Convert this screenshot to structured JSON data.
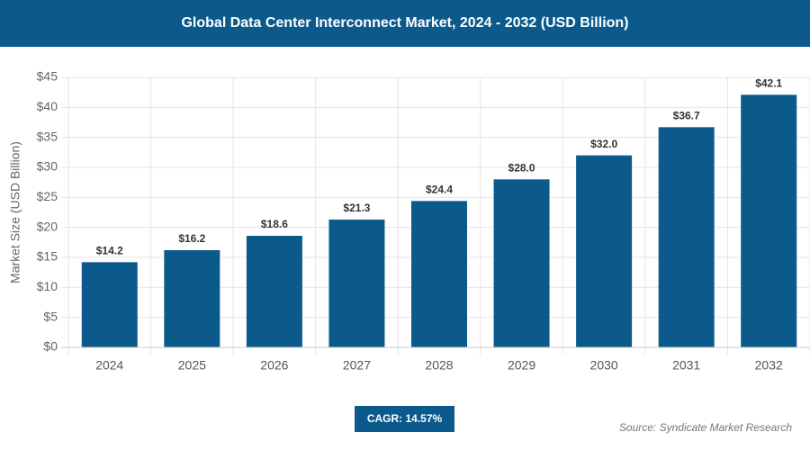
{
  "chart_data": {
    "type": "bar",
    "title": "Global Data Center Interconnect Market, 2024 - 2032 (USD Billion)",
    "y_label": "Market Size (USD Billion)",
    "categories": [
      "2024",
      "2025",
      "2026",
      "2027",
      "2028",
      "2029",
      "2030",
      "2031",
      "2032"
    ],
    "values": [
      14.2,
      16.2,
      18.6,
      21.3,
      24.4,
      28.0,
      32.0,
      36.7,
      42.1
    ],
    "value_labels": [
      "$14.2",
      "$16.2",
      "$18.6",
      "$21.3",
      "$24.4",
      "$28.0",
      "$32.0",
      "$36.7",
      "$42.1"
    ],
    "color": "#0b5a8b",
    "ylim": [
      0,
      45
    ],
    "yticks": [
      {
        "value": 0,
        "label": "$0"
      },
      {
        "value": 5,
        "label": "$5"
      },
      {
        "value": 10,
        "label": "$10"
      },
      {
        "value": 15,
        "label": "$15"
      },
      {
        "value": 20,
        "label": "$20"
      },
      {
        "value": 25,
        "label": "$25"
      },
      {
        "value": 30,
        "label": "$30"
      },
      {
        "value": 35,
        "label": "$35"
      },
      {
        "value": 40,
        "label": "$40"
      },
      {
        "value": 45,
        "label": "$45"
      }
    ],
    "grid": true,
    "cagr": "CAGR: 14.57%",
    "source": "Source: Syndicate Market Research"
  }
}
